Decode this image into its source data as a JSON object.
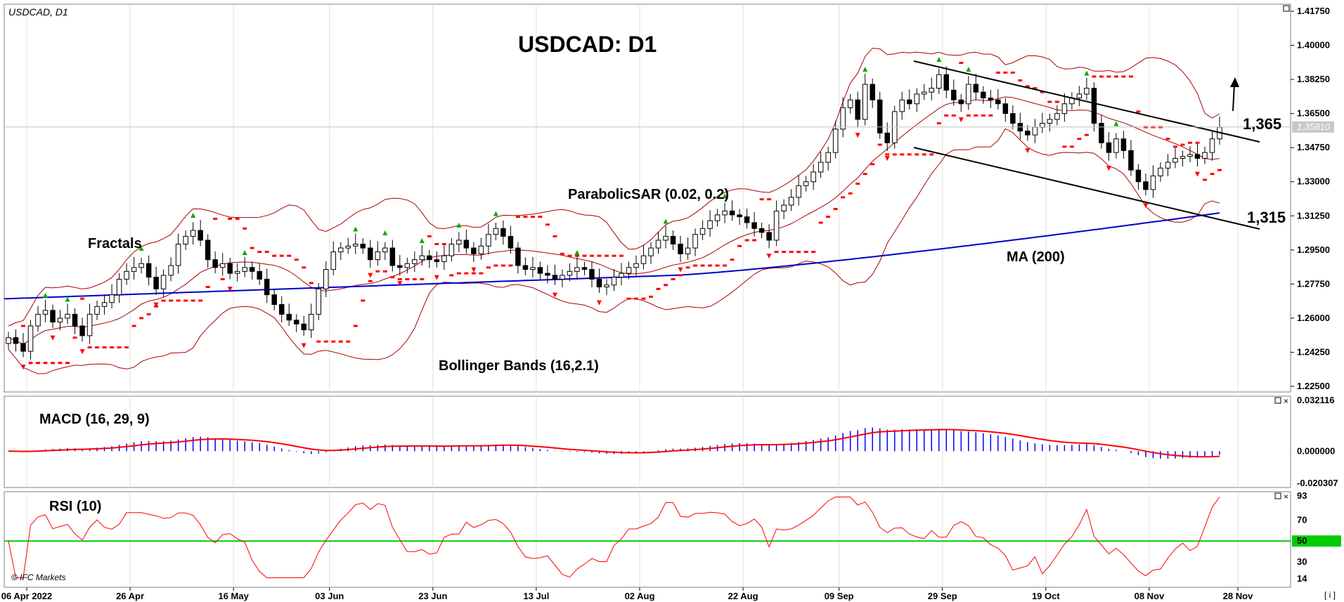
{
  "chart_data": {
    "type": "candlestick",
    "symbol_label": "USDCAD, D1",
    "title": "USDCAD: D1",
    "x_ticks": [
      "06 Apr 2022",
      "26 Apr",
      "16 May",
      "03 Jun",
      "23 Jun",
      "13 Jul",
      "02 Aug",
      "22 Aug",
      "09 Sep",
      "29 Sep",
      "19 Oct",
      "08 Nov",
      "28 Nov"
    ],
    "ohlc_close": [
      1.25,
      1.247,
      1.243,
      1.256,
      1.262,
      1.264,
      1.258,
      1.26,
      1.262,
      1.256,
      1.251,
      1.262,
      1.266,
      1.268,
      1.272,
      1.28,
      1.284,
      1.286,
      1.288,
      1.281,
      1.275,
      1.282,
      1.287,
      1.298,
      1.302,
      1.305,
      1.3,
      1.29,
      1.286,
      1.288,
      1.283,
      1.284,
      1.286,
      1.284,
      1.28,
      1.272,
      1.267,
      1.262,
      1.259,
      1.257,
      1.254,
      1.262,
      1.275,
      1.285,
      1.294,
      1.296,
      1.297,
      1.298,
      1.296,
      1.29,
      1.294,
      1.296,
      1.287,
      1.286,
      1.288,
      1.29,
      1.292,
      1.29,
      1.289,
      1.292,
      1.298,
      1.3,
      1.296,
      1.293,
      1.297,
      1.303,
      1.306,
      1.302,
      1.296,
      1.287,
      1.285,
      1.286,
      1.283,
      1.282,
      1.28,
      1.282,
      1.284,
      1.286,
      1.285,
      1.28,
      1.276,
      1.277,
      1.281,
      1.283,
      1.286,
      1.288,
      1.292,
      1.296,
      1.3,
      1.302,
      1.298,
      1.293,
      1.296,
      1.303,
      1.306,
      1.31,
      1.313,
      1.315,
      1.313,
      1.312,
      1.309,
      1.306,
      1.304,
      1.3,
      1.315,
      1.318,
      1.322,
      1.328,
      1.33,
      1.335,
      1.34,
      1.345,
      1.357,
      1.368,
      1.372,
      1.362,
      1.38,
      1.372,
      1.355,
      1.35,
      1.366,
      1.372,
      1.37,
      1.375,
      1.376,
      1.378,
      1.385,
      1.377,
      1.372,
      1.37,
      1.38,
      1.376,
      1.373,
      1.372,
      1.37,
      1.365,
      1.36,
      1.356,
      1.354,
      1.358,
      1.36,
      1.362,
      1.365,
      1.37,
      1.373,
      1.375,
      1.378,
      1.36,
      1.35,
      1.345,
      1.352,
      1.346,
      1.336,
      1.33,
      1.326,
      1.333,
      1.337,
      1.34,
      1.342,
      1.343,
      1.344,
      1.342,
      1.345,
      1.352,
      1.358
    ],
    "y_ticks": [
      "1.41750",
      "1.40000",
      "1.38250",
      "1.36500",
      "1.34750",
      "1.33000",
      "1.31250",
      "1.29500",
      "1.27750",
      "1.26000",
      "1.24250",
      "1.22500"
    ],
    "ylim": [
      1.225,
      1.4175
    ],
    "current_price": "1.35810",
    "annotations": {
      "fractals": "Fractals",
      "psar": "ParabolicSAR (0.02, 0.2)",
      "bb": "Bollinger Bands (16,2.1)",
      "ma": "MA (200)",
      "level_high": "1,365",
      "level_low": "1,315"
    },
    "macd": {
      "label": "MACD (16, 29, 9)",
      "y_ticks": [
        "0.032116",
        "0.000000",
        "-0.020307"
      ],
      "ylim": [
        -0.0203,
        0.0321
      ]
    },
    "rsi": {
      "label": "RSI (10)",
      "y_ticks": [
        "93",
        "70",
        "50",
        "30",
        "14"
      ],
      "ylim": [
        14,
        93
      ],
      "mid": 50
    },
    "colors": {
      "bull": "#ffffff",
      "bear": "#000000",
      "psar": "#ff0000",
      "bollinger": "#aa0000",
      "ma": "#0000cc",
      "macd_hist": "#0000ff",
      "macd_signal": "#ff0000",
      "rsi_line": "#ff0000",
      "rsi_mid": "#00cc00",
      "fractal_up": "#00aa00",
      "fractal_down": "#ff0000"
    }
  },
  "footer": {
    "brand": "© IFC Markets",
    "corner": "[ i ]"
  }
}
